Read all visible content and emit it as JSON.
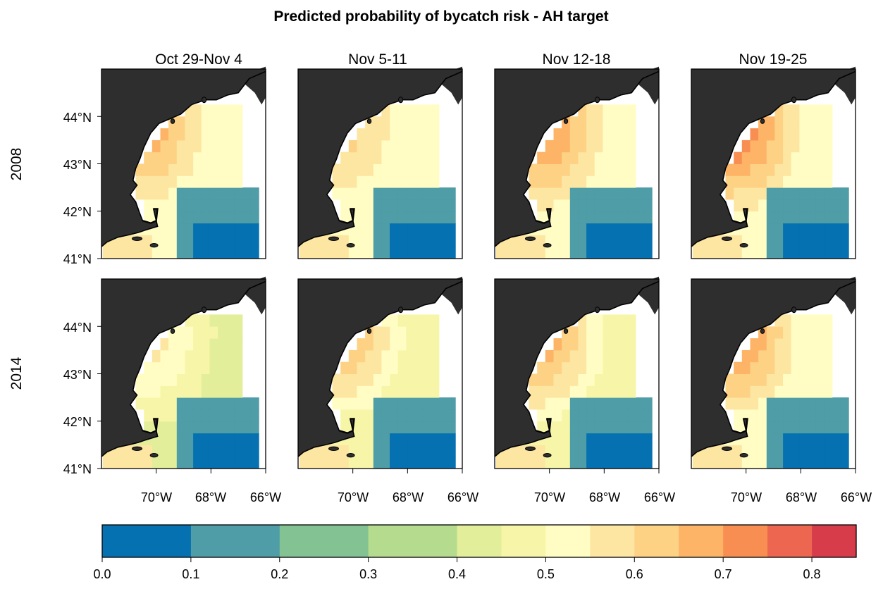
{
  "figure": {
    "title": "Predicted probability of bycatch risk - AH target",
    "columns": [
      "Oct 29-Nov 4",
      "Nov 5-11",
      "Nov 12-18",
      "Nov 19-25"
    ],
    "rows": [
      "2008",
      "2014"
    ],
    "lat_ticks": [
      "41°N",
      "42°N",
      "43°N",
      "44°N"
    ],
    "lon_ticks": [
      "70°W",
      "68°W",
      "66°W"
    ]
  },
  "colorbar": {
    "breaks": [
      0.0,
      0.1,
      0.2,
      0.3,
      0.4,
      0.45,
      0.5,
      0.55,
      0.6,
      0.65,
      0.7,
      0.75,
      0.8,
      0.85
    ],
    "colors": [
      "#0571b0",
      "#4f9da6",
      "#83c293",
      "#b5db8e",
      "#e3ee9a",
      "#f7f6a8",
      "#fffdc4",
      "#fde6a1",
      "#fdd285",
      "#fdb466",
      "#f98e52",
      "#ec6650",
      "#d73c4b"
    ],
    "tick_labels": [
      "0.0",
      "0.1",
      "0.2",
      "0.3",
      "0.4",
      "0.5",
      "0.6",
      "0.7",
      "0.8"
    ]
  },
  "chart_data": {
    "type": "heatmap",
    "title": "Predicted probability of bycatch risk - AH target",
    "variable": "Predicted probability of bycatch risk",
    "facet_columns": [
      "Oct 29-Nov 4",
      "Nov 5-11",
      "Nov 12-18",
      "Nov 19-25"
    ],
    "facet_rows": [
      "2008",
      "2014"
    ],
    "xlim": [
      -72,
      -66
    ],
    "ylim": [
      41,
      45
    ],
    "color_range": [
      0,
      0.85
    ],
    "grid": false,
    "legend": "bottom",
    "panels": [
      {
        "year": "2008",
        "week": "Oct 29-Nov 4",
        "coast": 0.72,
        "mid": 0.5,
        "southeast": 0.05
      },
      {
        "year": "2008",
        "week": "Nov 5-11",
        "coast": 0.64,
        "mid": 0.5,
        "southeast": 0.05
      },
      {
        "year": "2008",
        "week": "Nov 12-18",
        "coast": 0.76,
        "mid": 0.52,
        "southeast": 0.05
      },
      {
        "year": "2008",
        "week": "Nov 19-25",
        "coast": 0.8,
        "mid": 0.52,
        "southeast": 0.05
      },
      {
        "year": "2014",
        "week": "Oct 29-Nov 4",
        "coast": 0.6,
        "mid": 0.44,
        "southeast": 0.05
      },
      {
        "year": "2014",
        "week": "Nov 5-11",
        "coast": 0.7,
        "mid": 0.46,
        "southeast": 0.05
      },
      {
        "year": "2014",
        "week": "Nov 12-18",
        "coast": 0.73,
        "mid": 0.48,
        "southeast": 0.05
      },
      {
        "year": "2014",
        "week": "Nov 19-25",
        "coast": 0.76,
        "mid": 0.5,
        "southeast": 0.05
      }
    ]
  }
}
